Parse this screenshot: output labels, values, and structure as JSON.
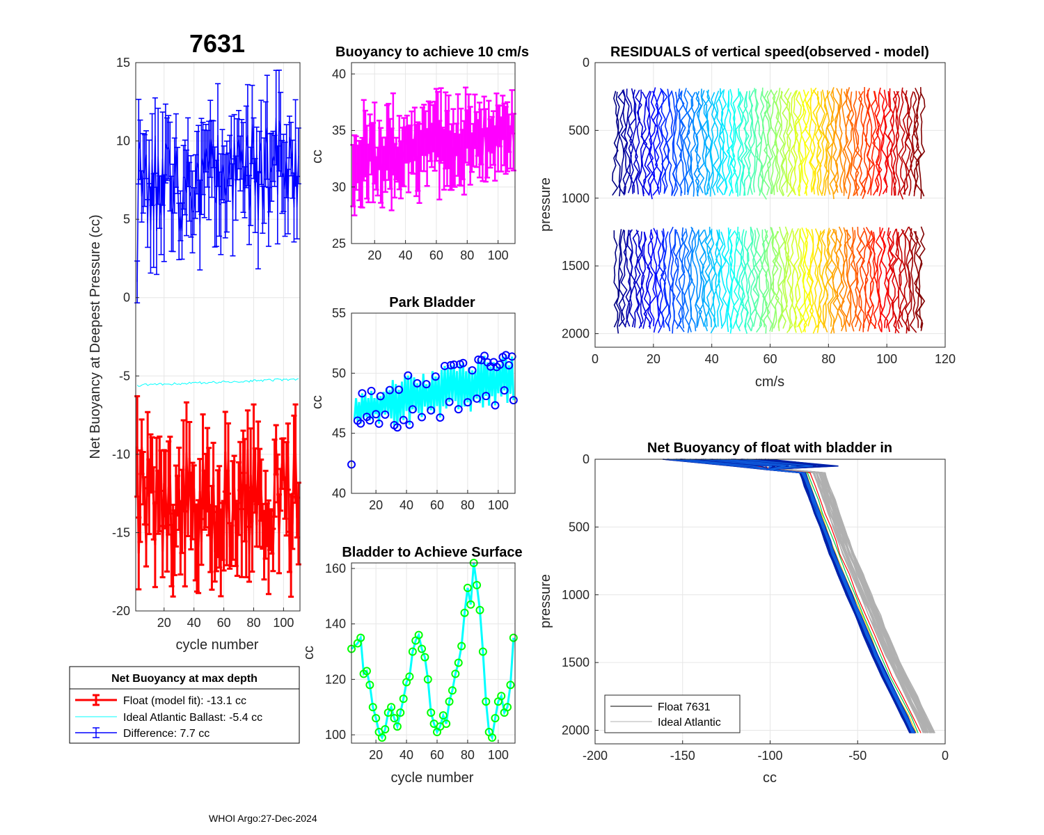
{
  "figure": {
    "float_id": "7631",
    "footer": "WHOI Argo:27-Dec-2024"
  },
  "chart_data": [
    {
      "id": "net_buoyancy",
      "type": "line",
      "title": "7631",
      "xlabel": "cycle number",
      "ylabel": "Net Buoyancy at Deepest Pressure (cc)",
      "xlim": [
        1,
        111
      ],
      "ylim": [
        -20,
        15
      ],
      "xticks": [
        20,
        40,
        60,
        80,
        100
      ],
      "yticks": [
        -20,
        -15,
        -10,
        -5,
        0,
        5,
        10,
        15
      ],
      "legend_title": "Net Buoyancy at max depth",
      "series": [
        {
          "name": "Float (model fit): -13.1 cc",
          "color": "#ff0000",
          "style": "errorbar",
          "center_mean": -13.1,
          "range": [
            -16.5,
            -9.5
          ],
          "half_error": 2.3,
          "first_value": -9.5
        },
        {
          "name": "Ideal Atlantic Ballast:  -5.4 cc",
          "color": "#00ffff",
          "style": "thin",
          "start": -5.6,
          "end": -5.2
        },
        {
          "name": "Difference:   7.7 cc",
          "color": "#0000ff",
          "style": "errorbar",
          "center_mean": 7.7,
          "range": [
            4.5,
            11.0
          ],
          "half_error": 2.3,
          "first_value": 1.0
        }
      ]
    },
    {
      "id": "buoyancy_10cms",
      "type": "line",
      "title": "Buoyancy to achieve 10 cm/s",
      "xlabel": "",
      "ylabel": "cc",
      "xlim": [
        5,
        111
      ],
      "ylim": [
        25,
        41
      ],
      "xticks": [
        20,
        40,
        60,
        80,
        100
      ],
      "yticks": [
        25,
        30,
        35,
        40
      ],
      "series": [
        {
          "name": "buoyancy",
          "color": "#ff00ff",
          "style": "errorbar",
          "center_start": 32.5,
          "center_end": 35.0,
          "half_error": 2.5
        }
      ]
    },
    {
      "id": "park_bladder",
      "type": "line",
      "title": "Park Bladder",
      "xlabel": "",
      "ylabel": "cc",
      "xlim": [
        4,
        111
      ],
      "ylim": [
        40,
        55
      ],
      "xticks": [
        20,
        40,
        60,
        80,
        100
      ],
      "yticks": [
        40,
        45,
        50,
        55
      ],
      "series": [
        {
          "name": "park bladder",
          "color": "#00ffff",
          "marker_color": "#0000ff",
          "first_point": [
            4,
            42.4
          ],
          "trend_start": 46.8,
          "trend_end": 49.8
        }
      ]
    },
    {
      "id": "bladder_surface",
      "type": "line",
      "title": "Bladder to Achieve Surface",
      "xlabel": "cycle number",
      "ylabel": "cc",
      "xlim": [
        4,
        111
      ],
      "ylim": [
        97,
        162
      ],
      "xticks": [
        20,
        40,
        60,
        80,
        100
      ],
      "yticks": [
        100,
        120,
        140,
        160
      ],
      "series": [
        {
          "name": "bladder surface",
          "color": "#00ffff",
          "marker_color": "#00ff00",
          "x": [
            4,
            8,
            10,
            12,
            14,
            16,
            18,
            20,
            22,
            24,
            26,
            28,
            30,
            32,
            34,
            36,
            38,
            40,
            42,
            44,
            46,
            48,
            50,
            52,
            54,
            56,
            58,
            60,
            62,
            64,
            66,
            68,
            70,
            72,
            74,
            76,
            78,
            80,
            82,
            84,
            86,
            88,
            90,
            92,
            94,
            96,
            98,
            100,
            102,
            104,
            106,
            108,
            110
          ],
          "y": [
            131,
            133,
            135,
            122,
            123,
            118,
            110,
            106,
            101,
            99,
            102,
            108,
            110,
            106,
            103,
            108,
            113,
            119,
            121,
            130,
            134,
            136,
            131,
            128,
            120,
            108,
            104,
            101,
            103,
            107,
            104,
            112,
            116,
            122,
            126,
            132,
            144,
            153,
            147,
            162,
            154,
            145,
            130,
            112,
            101,
            99,
            106,
            112,
            114,
            108,
            110,
            118,
            135
          ]
        }
      ]
    },
    {
      "id": "residuals",
      "type": "line",
      "title": "RESIDUALS of vertical speed(observed - model)",
      "xlabel": "cm/s",
      "ylabel": "pressure",
      "xlim": [
        0,
        120
      ],
      "ylim": [
        2100,
        0
      ],
      "xticks": [
        0,
        20,
        40,
        60,
        80,
        100,
        120
      ],
      "yticks": [
        0,
        500,
        1000,
        1500,
        2000
      ],
      "profile_count": 108,
      "profile_offset_start": 7,
      "profile_offset_end": 112,
      "segments": [
        [
          180,
          1010
        ],
        [
          1210,
          2000
        ]
      ],
      "colormap": "jet"
    },
    {
      "id": "net_buoyancy_profile",
      "type": "line",
      "title": "Net Buoyancy of float with bladder in",
      "xlabel": "cc",
      "ylabel": "pressure",
      "xlim": [
        -200,
        0
      ],
      "ylim": [
        2100,
        0
      ],
      "xticks": [
        -200,
        -150,
        -100,
        -50,
        0
      ],
      "yticks": [
        0,
        500,
        1000,
        1500,
        2000
      ],
      "profile_shape": {
        "pressure": [
          0,
          100,
          700,
          1500,
          2020
        ],
        "buoyancy": [
          -160,
          -80,
          -63,
          -37,
          -17
        ]
      },
      "legend": [
        {
          "name": "Float 7631",
          "color": "#000000"
        },
        {
          "name": "Ideal Atlantic",
          "color": "#b0b0b0"
        }
      ]
    }
  ]
}
